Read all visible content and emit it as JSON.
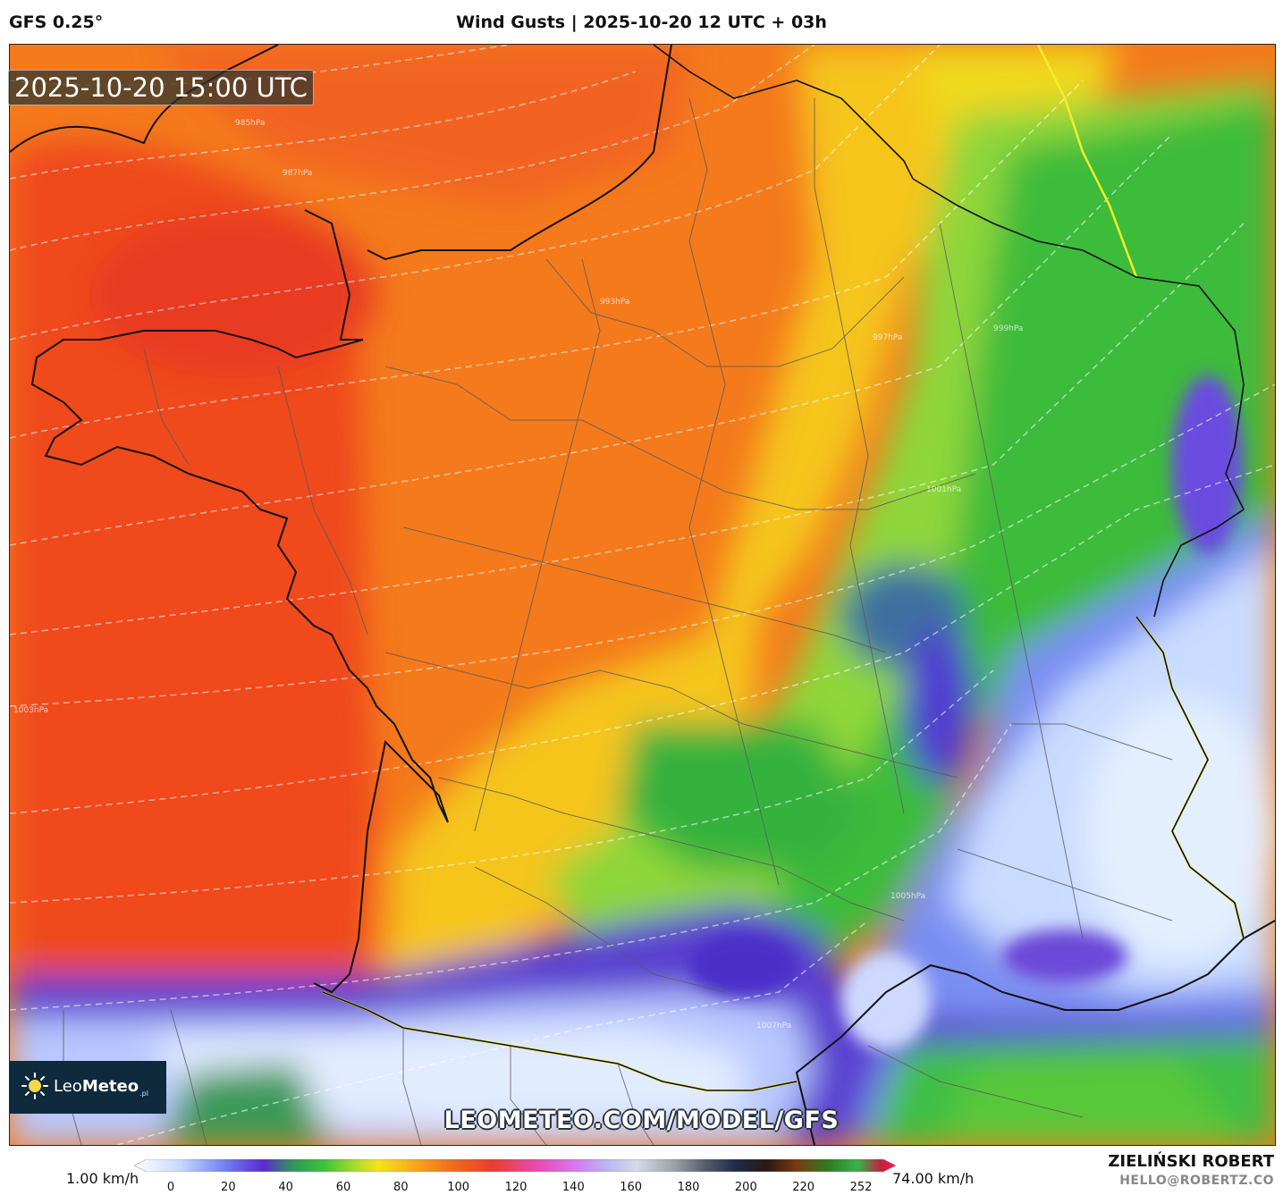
{
  "header": {
    "model": "GFS 0.25°",
    "title": "Wind Gusts | 2025-10-20 12 UTC + 03h"
  },
  "map": {
    "valid_time": "2025-10-20 15:00 UTC",
    "isobar_labels": [
      "985hPa",
      "987hPa",
      "993hPa",
      "997hPa",
      "999hPa",
      "1001hPa",
      "1003hPa",
      "1005hPa",
      "1007hPa"
    ],
    "watermark": "LEOMETEO.COM/MODEL/GFS"
  },
  "logo": {
    "name_light": "Leo",
    "name_bold": "Meteo",
    "suffix": ".pl",
    "icon": "sun-icon"
  },
  "legend": {
    "min_label": "1.00 km/h",
    "max_label": "74.00 km/h",
    "ticks": [
      "0",
      "20",
      "40",
      "60",
      "80",
      "100",
      "120",
      "140",
      "160",
      "180",
      "200",
      "220",
      "252"
    ]
  },
  "credits": {
    "author": "ZIELIŃSKI ROBERT",
    "email": "HELLO@ROBERTZ.CO"
  }
}
